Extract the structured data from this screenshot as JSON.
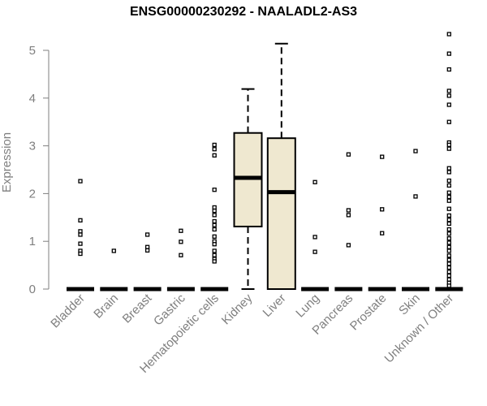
{
  "chart_data": {
    "type": "boxplot",
    "title": "ENSG00000230292 - NAALADL2-AS3",
    "xlabel": "",
    "ylabel": "Expression",
    "ylim": [
      0,
      5.4
    ],
    "yticks": [
      0,
      1,
      2,
      3,
      4,
      5
    ],
    "grid": false,
    "box_fill": "#efe8d0",
    "categories": [
      "Bladder",
      "Brain",
      "Breast",
      "Gastric",
      "Hematopoietic cells",
      "Kidney",
      "Liver",
      "Lung",
      "Pancreas",
      "Prostate",
      "Skin",
      "Unknown / Other"
    ],
    "boxes": [
      {
        "category": "Bladder",
        "min": 0,
        "q1": 0,
        "median": 0,
        "q3": 0,
        "max": 0,
        "outliers": [
          2.26,
          1.44,
          1.21,
          1.14,
          0.95,
          0.8,
          0.74
        ]
      },
      {
        "category": "Brain",
        "min": 0,
        "q1": 0,
        "median": 0,
        "q3": 0,
        "max": 0,
        "outliers": [
          0.8
        ]
      },
      {
        "category": "Breast",
        "min": 0,
        "q1": 0,
        "median": 0,
        "q3": 0,
        "max": 0,
        "outliers": [
          1.14,
          0.88,
          0.81
        ]
      },
      {
        "category": "Gastric",
        "min": 0,
        "q1": 0,
        "median": 0,
        "q3": 0,
        "max": 0,
        "outliers": [
          1.22,
          0.99,
          0.71
        ]
      },
      {
        "category": "Hematopoietic cells",
        "min": 0,
        "q1": 0,
        "median": 0,
        "q3": 0,
        "max": 0,
        "outliers": [
          3.02,
          2.93,
          2.8,
          2.08,
          1.71,
          1.64,
          1.55,
          1.42,
          1.34,
          1.25,
          1.1,
          1.0,
          0.94,
          0.8,
          0.71,
          0.63,
          0.58
        ]
      },
      {
        "category": "Kidney",
        "min": 0,
        "q1": 1.31,
        "median": 2.33,
        "q3": 3.27,
        "max": 4.19,
        "outliers": []
      },
      {
        "category": "Liver",
        "min": 0,
        "q1": 0,
        "median": 2.03,
        "q3": 3.16,
        "max": 5.14,
        "outliers": []
      },
      {
        "category": "Lung",
        "min": 0,
        "q1": 0,
        "median": 0,
        "q3": 0,
        "max": 0,
        "outliers": [
          2.24,
          1.09,
          0.78
        ]
      },
      {
        "category": "Pancreas",
        "min": 0,
        "q1": 0,
        "median": 0,
        "q3": 0,
        "max": 0,
        "outliers": [
          2.82,
          1.65,
          1.55,
          0.92
        ]
      },
      {
        "category": "Prostate",
        "min": 0,
        "q1": 0,
        "median": 0,
        "q3": 0,
        "max": 0,
        "outliers": [
          2.77,
          1.67,
          1.17
        ]
      },
      {
        "category": "Skin",
        "min": 0,
        "q1": 0,
        "median": 0,
        "q3": 0,
        "max": 0,
        "outliers": [
          2.89,
          1.94
        ]
      },
      {
        "category": "Unknown / Other",
        "min": 0,
        "q1": 0,
        "median": 0,
        "q3": 0,
        "max": 0,
        "outliers": [
          5.34,
          4.93,
          4.6,
          4.15,
          4.05,
          3.86,
          3.5,
          3.07,
          3.02,
          2.94,
          2.53,
          2.45,
          2.27,
          2.17,
          2.02,
          1.93,
          1.85,
          1.68,
          1.54,
          1.45,
          1.37,
          1.25,
          1.16,
          1.06,
          0.97,
          0.88,
          0.8,
          0.7,
          0.61,
          0.53,
          0.45,
          0.36,
          0.28,
          0.2,
          0.13,
          0.07
        ]
      }
    ]
  }
}
